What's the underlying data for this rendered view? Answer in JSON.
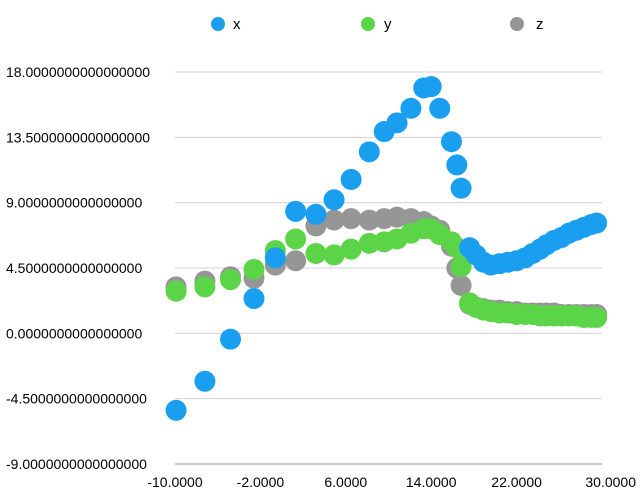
{
  "chart_data": {
    "type": "scatter",
    "title": "",
    "xlabel": "",
    "ylabel": "",
    "xlim": [
      -10,
      30
    ],
    "ylim": [
      -9,
      18
    ],
    "x_ticks": [
      -10,
      -2,
      6,
      14,
      22,
      30
    ],
    "y_ticks": [
      -9,
      -4.5,
      0,
      4.5,
      9,
      13.5,
      18
    ],
    "x_tick_labels": [
      "-10.0000",
      "-2.0000",
      "6.0000",
      "14.0000",
      "22.0000",
      "30.0000"
    ],
    "y_tick_labels": [
      "-9.0000000000000000",
      "-4.5000000000000000",
      "0.0000000000000000",
      "4.5000000000000000",
      "9.0000000000000000",
      "13.5000000000000000",
      "18.0000000000000000"
    ],
    "grid": "horizontal",
    "legend": "top",
    "series": [
      {
        "name": "x",
        "color": "#1a9ff0",
        "points": [
          [
            -9.9,
            -5.3
          ],
          [
            -7.2,
            -3.3
          ],
          [
            -4.8,
            -0.4
          ],
          [
            -2.6,
            2.4
          ],
          [
            -0.6,
            5.2
          ],
          [
            1.3,
            8.4
          ],
          [
            3.2,
            8.2
          ],
          [
            4.9,
            9.2
          ],
          [
            6.5,
            10.6
          ],
          [
            8.2,
            12.5
          ],
          [
            9.6,
            13.9
          ],
          [
            10.8,
            14.5
          ],
          [
            12.1,
            15.5
          ],
          [
            13.3,
            16.9
          ],
          [
            14.0,
            17.0
          ],
          [
            14.8,
            15.5
          ],
          [
            15.9,
            13.2
          ],
          [
            16.4,
            11.6
          ],
          [
            16.8,
            10.0
          ],
          [
            17.6,
            5.9
          ],
          [
            18.2,
            5.4
          ],
          [
            18.9,
            4.9
          ],
          [
            19.6,
            4.7
          ],
          [
            20.4,
            4.8
          ],
          [
            21.2,
            4.9
          ],
          [
            22.0,
            5.0
          ],
          [
            22.8,
            5.2
          ],
          [
            23.5,
            5.5
          ],
          [
            24.2,
            5.8
          ],
          [
            24.8,
            6.1
          ],
          [
            25.5,
            6.4
          ],
          [
            26.2,
            6.6
          ],
          [
            26.9,
            6.9
          ],
          [
            27.6,
            7.1
          ],
          [
            28.3,
            7.3
          ],
          [
            29.0,
            7.5
          ],
          [
            29.5,
            7.6
          ]
        ]
      },
      {
        "name": "y",
        "color": "#5cd447",
        "points": [
          [
            -9.9,
            2.9
          ],
          [
            -7.2,
            3.2
          ],
          [
            -4.8,
            3.7
          ],
          [
            -2.6,
            4.4
          ],
          [
            -0.6,
            5.7
          ],
          [
            1.3,
            6.5
          ],
          [
            3.2,
            5.5
          ],
          [
            4.9,
            5.4
          ],
          [
            6.5,
            5.8
          ],
          [
            8.2,
            6.2
          ],
          [
            9.6,
            6.3
          ],
          [
            10.8,
            6.5
          ],
          [
            12.1,
            6.9
          ],
          [
            13.3,
            7.2
          ],
          [
            14.0,
            7.2
          ],
          [
            14.8,
            6.8
          ],
          [
            15.9,
            6.3
          ],
          [
            16.4,
            5.9
          ],
          [
            16.8,
            4.6
          ],
          [
            17.6,
            2.1
          ],
          [
            18.2,
            1.8
          ],
          [
            18.9,
            1.6
          ],
          [
            19.6,
            1.5
          ],
          [
            20.4,
            1.4
          ],
          [
            21.2,
            1.4
          ],
          [
            22.0,
            1.3
          ],
          [
            22.8,
            1.3
          ],
          [
            23.5,
            1.3
          ],
          [
            24.2,
            1.2
          ],
          [
            24.8,
            1.2
          ],
          [
            25.5,
            1.2
          ],
          [
            26.2,
            1.2
          ],
          [
            26.9,
            1.2
          ],
          [
            27.6,
            1.2
          ],
          [
            28.3,
            1.1
          ],
          [
            29.0,
            1.1
          ],
          [
            29.5,
            1.1
          ]
        ]
      },
      {
        "name": "z",
        "color": "#969696",
        "points": [
          [
            -9.9,
            3.2
          ],
          [
            -7.2,
            3.6
          ],
          [
            -4.8,
            3.9
          ],
          [
            -2.6,
            3.8
          ],
          [
            -0.6,
            4.7
          ],
          [
            1.3,
            5.0
          ],
          [
            3.2,
            7.4
          ],
          [
            4.9,
            7.8
          ],
          [
            6.5,
            7.9
          ],
          [
            8.2,
            7.8
          ],
          [
            9.6,
            7.9
          ],
          [
            10.8,
            8.0
          ],
          [
            12.1,
            7.9
          ],
          [
            13.3,
            7.7
          ],
          [
            14.0,
            7.4
          ],
          [
            14.8,
            7.1
          ],
          [
            15.9,
            6.0
          ],
          [
            16.4,
            4.5
          ],
          [
            16.8,
            3.3
          ],
          [
            17.6,
            2.0
          ],
          [
            18.2,
            1.8
          ],
          [
            18.9,
            1.7
          ],
          [
            19.6,
            1.6
          ],
          [
            20.4,
            1.6
          ],
          [
            21.2,
            1.5
          ],
          [
            22.0,
            1.5
          ],
          [
            22.8,
            1.4
          ],
          [
            23.5,
            1.4
          ],
          [
            24.2,
            1.4
          ],
          [
            24.8,
            1.4
          ],
          [
            25.5,
            1.4
          ],
          [
            26.2,
            1.3
          ],
          [
            26.9,
            1.3
          ],
          [
            27.6,
            1.3
          ],
          [
            28.3,
            1.3
          ],
          [
            29.0,
            1.3
          ],
          [
            29.5,
            1.3
          ]
        ]
      }
    ]
  }
}
